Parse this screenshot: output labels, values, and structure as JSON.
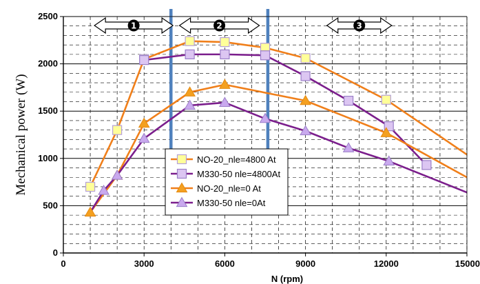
{
  "chart_data": {
    "type": "line",
    "title": "",
    "xlabel": "N (rpm)",
    "ylabel": "Mechanical power (W)",
    "xlim": [
      0,
      15000
    ],
    "ylim": [
      0,
      2500
    ],
    "x_ticks": [
      "0",
      "3000",
      "6000",
      "9000",
      "12000",
      "15000"
    ],
    "y_ticks": [
      "0",
      "500",
      "1000",
      "1500",
      "2000",
      "2500"
    ],
    "grid": true,
    "legend_position": "lower-center",
    "series": [
      {
        "name": "NO-20_nle=4800 At",
        "color": "#F07F1A",
        "marker": "square",
        "marker_fill": "#FFFF99",
        "marker_stroke": "#B59FD8",
        "x": [
          1000,
          2000,
          3000,
          4700,
          6000,
          7500,
          9000,
          12000,
          15000
        ],
        "y": [
          700,
          1300,
          2050,
          2240,
          2230,
          2170,
          2060,
          1620,
          1040
        ],
        "marked": [
          true,
          true,
          true,
          true,
          true,
          true,
          true,
          true,
          false
        ]
      },
      {
        "name": "M330-50 nle=4800At",
        "color": "#7B1E8C",
        "marker": "square",
        "marker_fill": "#DCC6F2",
        "marker_stroke": "#9B7FC8",
        "x": [
          3000,
          4700,
          6000,
          7500,
          9000,
          10600,
          12100,
          13500
        ],
        "y": [
          2040,
          2100,
          2100,
          2090,
          1870,
          1610,
          1340,
          930
        ],
        "marked": [
          true,
          true,
          true,
          true,
          true,
          true,
          true,
          true
        ]
      },
      {
        "name": "NO-20_nle=0 At",
        "color": "#F07F1A",
        "marker": "triangle",
        "marker_fill": "#F4A020",
        "marker_stroke": "#E58A10",
        "x": [
          1000,
          2000,
          3000,
          4700,
          6000,
          9000,
          12000,
          15000
        ],
        "y": [
          430,
          820,
          1370,
          1700,
          1780,
          1610,
          1270,
          800
        ],
        "marked": [
          true,
          true,
          true,
          true,
          true,
          true,
          true,
          false
        ]
      },
      {
        "name": "M330-50 nle=0At",
        "color": "#7B1E8C",
        "marker": "triangle",
        "marker_fill": "#C9A9EE",
        "marker_stroke": "#9B7FC8",
        "x": [
          1000,
          1500,
          2000,
          3000,
          4700,
          6000,
          7500,
          9000,
          10600,
          12100,
          15000
        ],
        "y": [
          430,
          660,
          820,
          1210,
          1560,
          1590,
          1420,
          1290,
          1110,
          970,
          640
        ],
        "marked": [
          false,
          true,
          true,
          true,
          true,
          true,
          true,
          true,
          true,
          true,
          false
        ]
      }
    ],
    "zone_dividers": [
      4000,
      7600
    ],
    "zone_labels": [
      "1",
      "2",
      "3"
    ],
    "colors": {
      "divider": "#4F81BD",
      "grid": "#000000",
      "arrow_fill": "#ffffff",
      "zone_badge": "#000000"
    }
  }
}
